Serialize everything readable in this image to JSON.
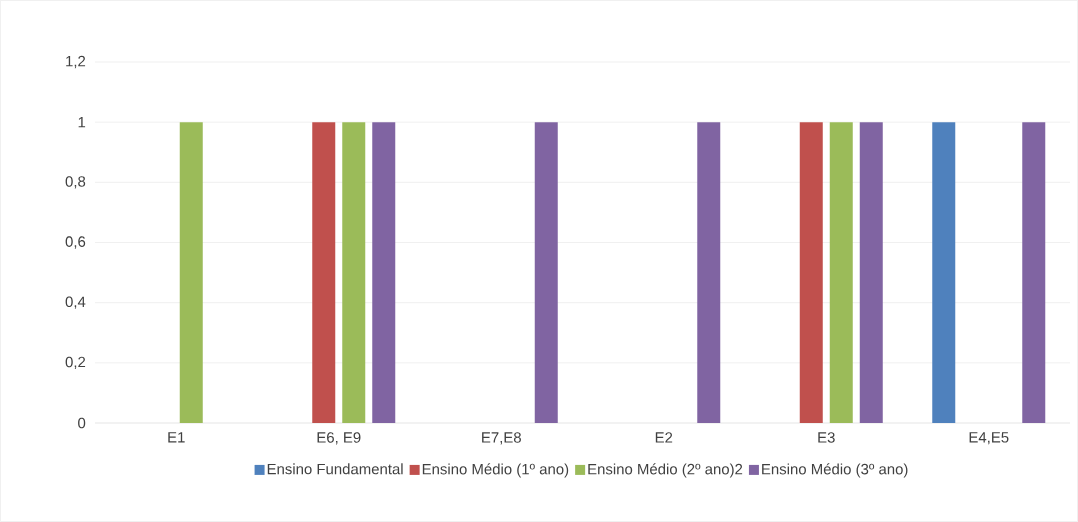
{
  "chart_data": {
    "type": "bar",
    "categories": [
      "E1",
      "E6, E9",
      "E7,E8",
      "E2",
      "E3",
      "E4,E5"
    ],
    "series": [
      {
        "name": "Ensino Fundamental",
        "color": "#4f81bd",
        "values": [
          0,
          0,
          0,
          0,
          0,
          1
        ]
      },
      {
        "name": "Ensino Médio (1º ano)",
        "color": "#c0504d",
        "values": [
          0,
          1,
          0,
          0,
          1,
          0
        ]
      },
      {
        "name": "Ensino Médio (2º ano)2",
        "color": "#9bbb59",
        "values": [
          1,
          1,
          0,
          0,
          1,
          0
        ]
      },
      {
        "name": "Ensino Médio (3º ano)",
        "color": "#8064a2",
        "values": [
          0,
          1,
          1,
          1,
          1,
          1
        ]
      }
    ],
    "ylim": [
      0,
      1.2
    ],
    "yticks": [
      0,
      {
        "value": 0.2,
        "label": "0,2"
      },
      {
        "value": 0.4,
        "label": "0,4"
      },
      {
        "value": 0.6,
        "label": "0,6"
      },
      {
        "value": 0.8,
        "label": "0,8"
      },
      1,
      {
        "value": 1.2,
        "label": "1,2"
      }
    ],
    "grid": "y",
    "legend": "bottom"
  }
}
